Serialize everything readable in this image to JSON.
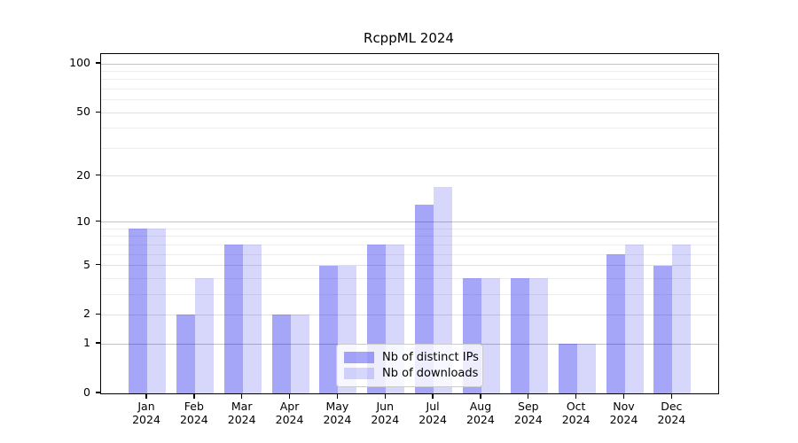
{
  "chart_data": {
    "type": "bar",
    "title": "RcppML 2024",
    "categories": [
      "Jan",
      "Feb",
      "Mar",
      "Apr",
      "May",
      "Jun",
      "Jul",
      "Aug",
      "Sep",
      "Oct",
      "Nov",
      "Dec"
    ],
    "x_year_line": "2024",
    "series": [
      {
        "name": "Nb of distinct IPs",
        "color": "rgba(0,0,235,0.35)",
        "solid_color": "#a8a8f8",
        "values": [
          9,
          2,
          7,
          2,
          5,
          7,
          13,
          4,
          4,
          1,
          6,
          5
        ]
      },
      {
        "name": "Nb of downloads",
        "color": "rgba(0,0,235,0.155)",
        "solid_color": "#d9d9fb",
        "values": [
          9,
          4,
          7,
          2,
          5,
          7,
          17,
          4,
          4,
          1,
          7,
          7
        ]
      }
    ],
    "yscale": "log1p",
    "ylabel": "",
    "xlabel": "",
    "y_ticks": [
      0,
      1,
      2,
      5,
      10,
      20,
      50,
      100
    ],
    "y_major_grid": [
      1,
      10,
      100
    ],
    "y_mid_grid": [
      2,
      5,
      20,
      50
    ],
    "y_minor_grid": [
      3,
      4,
      6,
      7,
      8,
      9,
      30,
      40,
      60,
      70,
      80,
      90
    ],
    "ylim": [
      0,
      115
    ],
    "grid": true,
    "legend_position": "lower center"
  }
}
